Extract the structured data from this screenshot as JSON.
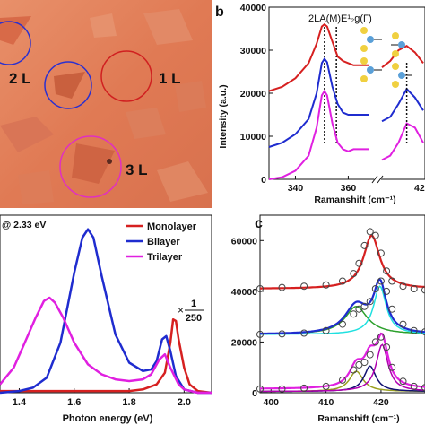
{
  "colors": {
    "red": "#d62020",
    "blue": "#1f2ccf",
    "magenta": "#e020e0",
    "green": "#2ca02c",
    "cyan": "#20e0e0",
    "purple": "#b000b0",
    "olive": "#9aa020",
    "navy": "#101070",
    "bg_optical": "#e6845c"
  },
  "panel_a": {
    "labels": [
      "2 L",
      "1 L",
      "3 L"
    ]
  },
  "panel_b": {
    "letter": "b",
    "ylabel": "Intensity (a.u.)",
    "xlabel": "Ramanshift (cm⁻¹)",
    "yticks": [
      "0",
      "10000",
      "20000",
      "30000",
      "40000"
    ],
    "xticks": [
      "340",
      "360",
      "42"
    ],
    "annotation": "2LA(M)",
    "annotation2": "E¹₂g(Γ)"
  },
  "panel_pl": {
    "title_fragment": "@ 2.33 eV",
    "xlabel": "Photon energy (eV)",
    "xticks": [
      "1.4",
      "1.6",
      "1.8",
      "2.0"
    ],
    "legend": [
      "Monolayer",
      "Bilayer",
      "Trilayer"
    ],
    "scale_mult": "×",
    "scale_num": "1",
    "scale_den": "250"
  },
  "panel_c": {
    "letter": "c",
    "xlabel": "Ramanshift (cm⁻¹)",
    "yticks": [
      "0",
      "20000",
      "40000",
      "60000"
    ],
    "xticks": [
      "400",
      "410",
      "420"
    ]
  },
  "chart_data": [
    {
      "type": "line",
      "panel": "b",
      "ylabel": "Intensity (a.u.)",
      "xlabel": "Ramanshift (cm⁻¹)",
      "xlim": [
        330,
        368
      ],
      "ylim": [
        0,
        40000
      ],
      "series": [
        {
          "name": "",
          "x": [
            330,
            335,
            340,
            345,
            348,
            350,
            351,
            352,
            354,
            356,
            358,
            360,
            362,
            364,
            368
          ],
          "y": [
            20500,
            21500,
            23500,
            27000,
            31500,
            35500,
            36000,
            35500,
            32000,
            28500,
            27500,
            27000,
            26500,
            26500,
            26500
          ]
        },
        {
          "name": "",
          "x": [
            330,
            335,
            340,
            345,
            348,
            350,
            351,
            352,
            354,
            356,
            358,
            360,
            362,
            364,
            368
          ],
          "y": [
            7500,
            8500,
            10500,
            14000,
            20000,
            27000,
            28000,
            27200,
            21500,
            17500,
            15500,
            15000,
            15000,
            15000,
            15000
          ]
        },
        {
          "name": "",
          "x": [
            330,
            335,
            340,
            345,
            348,
            350,
            351,
            352,
            354,
            356,
            358,
            360,
            362,
            364,
            368
          ],
          "y": [
            0,
            500,
            2000,
            5500,
            12000,
            19500,
            20500,
            19500,
            13000,
            8500,
            7000,
            6500,
            7000,
            7000,
            7000
          ]
        }
      ],
      "right_partial": [
        {
          "x": [
            420,
            421,
            422,
            423,
            424,
            425
          ],
          "y": [
            26000,
            27500,
            30000,
            31000,
            29500,
            27000
          ]
        },
        {
          "x": [
            420,
            421,
            422,
            423,
            424,
            425
          ],
          "y": [
            13500,
            14500,
            17500,
            21000,
            19000,
            16000
          ]
        },
        {
          "x": [
            420,
            421,
            422,
            423,
            424,
            425
          ],
          "y": [
            4500,
            5500,
            8500,
            13000,
            12000,
            8500
          ]
        }
      ]
    },
    {
      "type": "line",
      "panel": "pl",
      "xlabel": "Photon energy (eV)",
      "xlim": [
        1.33,
        2.1
      ],
      "ylim": [
        0,
        1.0
      ],
      "series": [
        {
          "name": "Monolayer",
          "x": [
            1.33,
            1.4,
            1.5,
            1.6,
            1.7,
            1.8,
            1.85,
            1.9,
            1.93,
            1.95,
            1.96,
            1.97,
            1.98,
            2.0,
            2.02,
            2.05,
            2.1
          ],
          "y": [
            0.01,
            0.01,
            0.01,
            0.01,
            0.01,
            0.01,
            0.02,
            0.05,
            0.12,
            0.3,
            0.44,
            0.43,
            0.32,
            0.15,
            0.05,
            0.01,
            0.0
          ]
        },
        {
          "name": "Bilayer",
          "x": [
            1.33,
            1.4,
            1.45,
            1.5,
            1.55,
            1.6,
            1.63,
            1.65,
            1.67,
            1.7,
            1.75,
            1.8,
            1.85,
            1.88,
            1.9,
            1.92,
            1.935,
            1.95,
            1.97,
            2.0,
            2.05,
            2.1
          ],
          "y": [
            0.0,
            0.01,
            0.03,
            0.09,
            0.3,
            0.72,
            0.93,
            0.98,
            0.93,
            0.7,
            0.35,
            0.18,
            0.13,
            0.14,
            0.19,
            0.32,
            0.34,
            0.25,
            0.1,
            0.02,
            0.0,
            0.0
          ]
        },
        {
          "name": "Trilayer",
          "x": [
            1.33,
            1.38,
            1.42,
            1.46,
            1.49,
            1.51,
            1.53,
            1.56,
            1.6,
            1.65,
            1.7,
            1.75,
            1.8,
            1.85,
            1.88,
            1.91,
            1.93,
            1.95,
            1.98,
            2.0,
            2.05,
            2.1
          ],
          "y": [
            0.05,
            0.15,
            0.3,
            0.45,
            0.55,
            0.57,
            0.54,
            0.45,
            0.3,
            0.17,
            0.11,
            0.08,
            0.07,
            0.08,
            0.11,
            0.2,
            0.23,
            0.15,
            0.05,
            0.02,
            0.0,
            0.0
          ]
        }
      ]
    },
    {
      "type": "scatter",
      "panel": "c",
      "xlabel": "Ramanshift (cm⁻¹)",
      "xlim": [
        398,
        428
      ],
      "ylim": [
        0,
        70000
      ],
      "series": [
        {
          "name": "",
          "x": [
            398,
            402,
            406,
            410,
            413,
            415,
            416,
            417,
            418,
            419,
            420,
            421,
            422,
            424,
            426,
            428
          ],
          "y": [
            41000,
            41500,
            42000,
            42500,
            44000,
            47000,
            51000,
            58000,
            63500,
            62000,
            55000,
            48000,
            44000,
            42000,
            41000,
            40500
          ]
        },
        {
          "name": "",
          "x": [
            398,
            402,
            406,
            410,
            413,
            415,
            416,
            417,
            418,
            419,
            420,
            421,
            422,
            424,
            426,
            428
          ],
          "y": [
            23000,
            23200,
            23500,
            24500,
            27000,
            31000,
            33000,
            34000,
            36000,
            41000,
            44000,
            40000,
            33000,
            27000,
            24500,
            24000
          ]
        },
        {
          "name": "",
          "x": [
            398,
            402,
            406,
            410,
            413,
            415,
            416,
            417,
            418,
            419,
            420,
            421,
            422,
            424,
            426,
            428
          ],
          "y": [
            1500,
            1500,
            1800,
            2500,
            5000,
            9000,
            11000,
            12000,
            15000,
            20000,
            22000,
            18000,
            10000,
            4500,
            2500,
            2000
          ]
        }
      ]
    }
  ]
}
